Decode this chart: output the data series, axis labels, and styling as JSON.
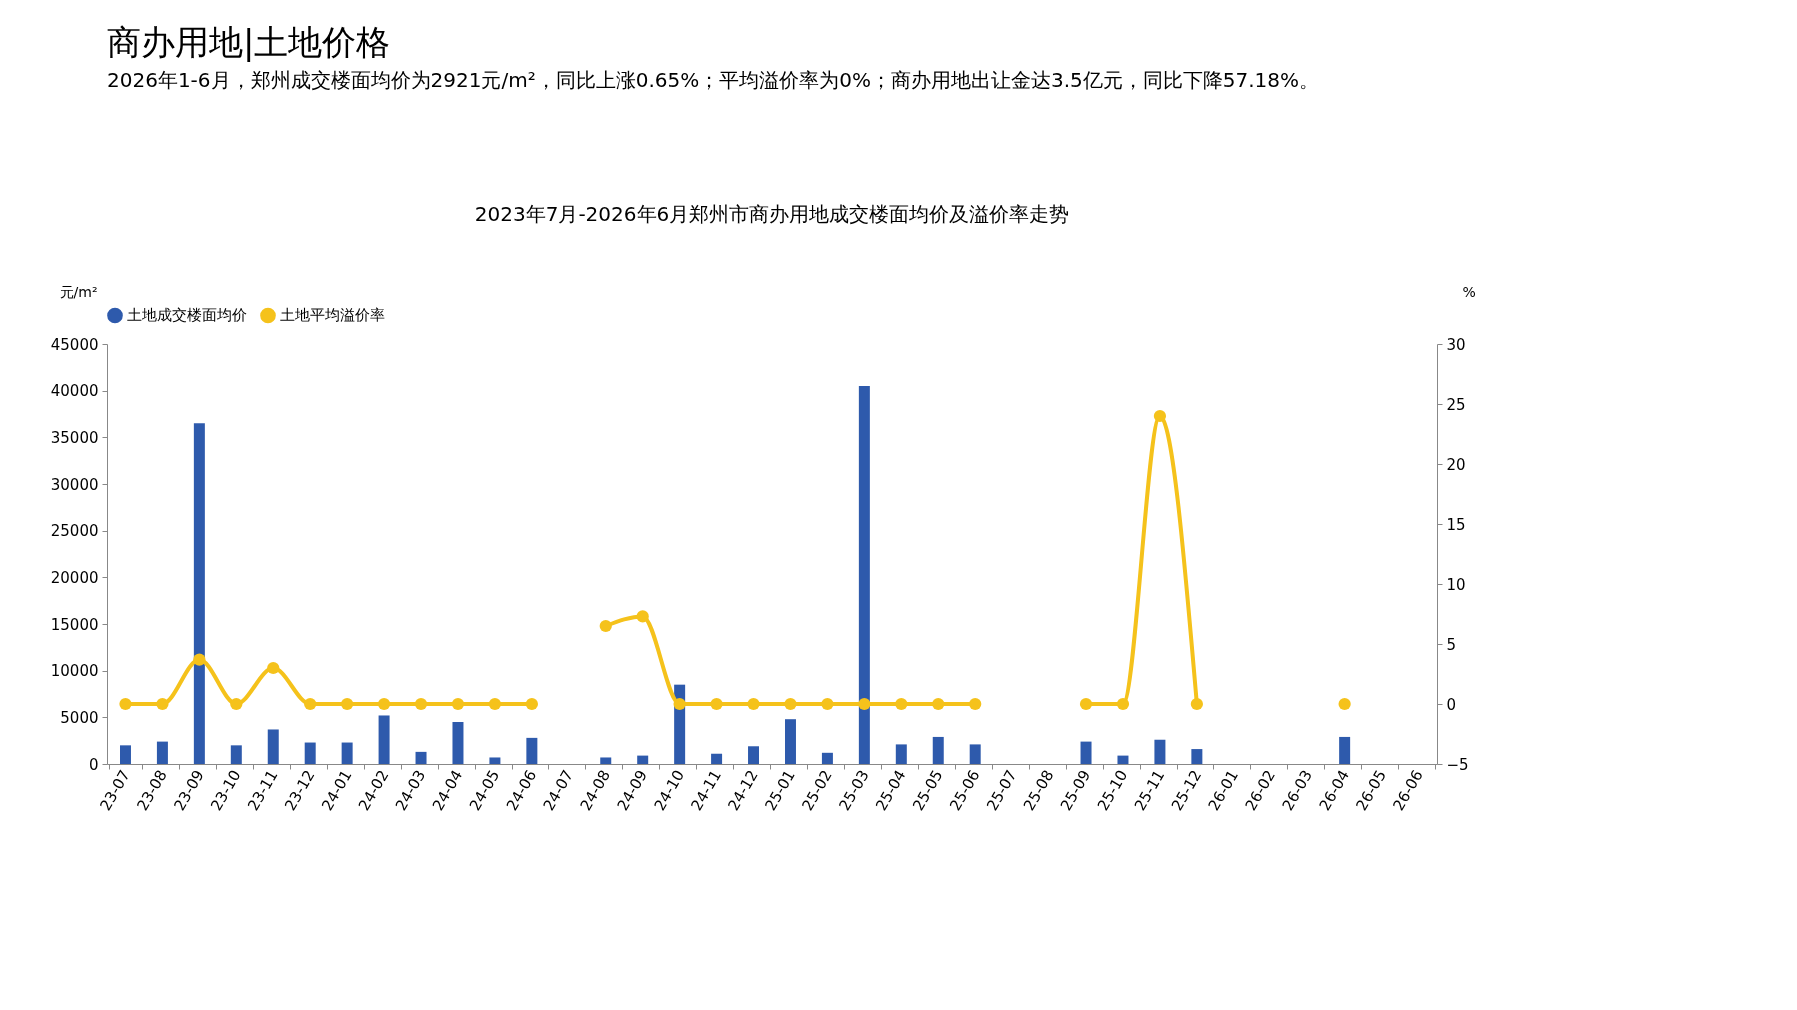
{
  "chart_data": {
    "type": "bar",
    "title": "2023年7月-2026年6月郑州市商办用地成交楼面均价及溢价率走势",
    "annotations": [
      "商办用地|土地价格",
      "2026年1-6月，郑州成交楼面均价为2921元/m²，同比上涨0.65%；平均溢价率为0%；商办用地出让金达3.5亿元，同比下降57.18%。"
    ],
    "ylabel": "元/m²",
    "y2label": "%",
    "categories": [
      "23-07",
      "23-08",
      "23-09",
      "23-10",
      "23-11",
      "23-12",
      "24-01",
      "24-02",
      "24-03",
      "24-04",
      "24-05",
      "24-06",
      "24-07",
      "24-08",
      "24-09",
      "24-10",
      "24-11",
      "24-12",
      "25-01",
      "25-02",
      "25-03",
      "25-04",
      "25-05",
      "25-06",
      "25-07",
      "25-08",
      "25-09",
      "25-10",
      "25-11",
      "25-12",
      "26-01",
      "26-02",
      "26-03",
      "26-04",
      "26-05",
      "26-06"
    ],
    "series": [
      {
        "name": "土地成交楼面均价",
        "color": "#2e5aac",
        "values": [
          2000,
          2400,
          36500,
          2000,
          3700,
          2300,
          2300,
          5200,
          1300,
          4500,
          700,
          2800,
          null,
          700,
          900,
          8500,
          1100,
          1900,
          4800,
          1200,
          40500,
          2100,
          2900,
          2100,
          null,
          null,
          2400,
          900,
          2600,
          1600,
          null,
          null,
          null,
          2900,
          null,
          null
        ]
      },
      {
        "name": "土地平均溢价率",
        "type": "line",
        "axis": "y2",
        "color": "#f5c21b",
        "marker": "circle",
        "line_style": "solid",
        "values": [
          0,
          0,
          3.7,
          0,
          3.0,
          0,
          0,
          0,
          0,
          0,
          0,
          0,
          null,
          6.5,
          7.3,
          0,
          0,
          0,
          0,
          0,
          0,
          0,
          0,
          0,
          null,
          null,
          0,
          0,
          24,
          0,
          null,
          null,
          null,
          0,
          null,
          null
        ]
      }
    ],
    "ylim": [
      0,
      45000
    ],
    "yticks": [
      0,
      5000,
      10000,
      15000,
      20000,
      25000,
      30000,
      35000,
      40000,
      45000
    ],
    "y2lim": [
      -5,
      30
    ],
    "y2ticks": [
      -5,
      0,
      5,
      10,
      15,
      20,
      25,
      30
    ],
    "legend": "top",
    "grid": false
  }
}
